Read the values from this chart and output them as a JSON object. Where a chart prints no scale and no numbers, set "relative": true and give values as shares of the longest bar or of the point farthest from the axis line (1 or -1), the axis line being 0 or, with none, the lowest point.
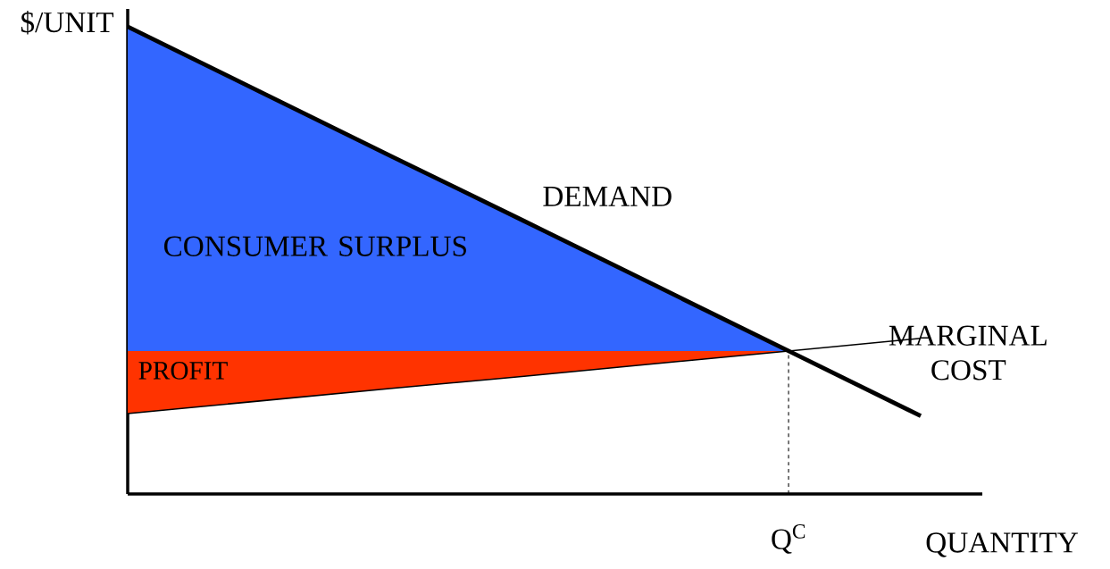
{
  "chart_data": {
    "type": "line",
    "relative": true,
    "xlabel": "QUANTITY",
    "ylabel": "$/UNIT",
    "categories": [
      null,
      null,
      null,
      null,
      null,
      null,
      null
    ],
    "series": [
      {
        "name": "CONSUMER SURPLUS",
        "type": "area",
        "color": "#3366ff",
        "values": [
          1,
          0.861,
          0.722,
          0.584,
          0.445,
          0.306,
          null
        ]
      },
      {
        "name": "PROFIT",
        "type": "area",
        "color": "#ff3300",
        "values": [
          0.306,
          0.306,
          0.306,
          0.306,
          0.306,
          0.306,
          null
        ]
      },
      {
        "name": "MARGINAL COST",
        "color": "#000000",
        "values": [
          0.172,
          0.199,
          0.226,
          0.252,
          0.279,
          0.306,
          0.333
        ]
      },
      {
        "name": "DEMAND",
        "color": "#000000",
        "values": [
          1,
          0.861,
          0.722,
          0.584,
          0.445,
          0.306,
          0.167
        ]
      }
    ],
    "annotations": [
      "Q$^{C}$"
    ]
  }
}
